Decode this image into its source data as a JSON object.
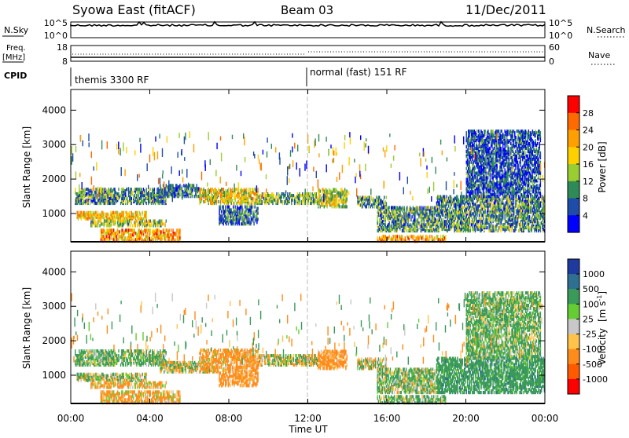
{
  "header": {
    "station": "Syowa East (fitACF)",
    "beam": "Beam 03",
    "date": "11/Dec/2011"
  },
  "panels": {
    "nsky_label": "N.Sky",
    "nsky_ticks": [
      "10^5",
      "10^0"
    ],
    "nsearch_label": "N.Search",
    "nsearch_ticks": [
      "10^5",
      "10^0"
    ],
    "freq_label_1": "Freq.",
    "freq_label_2": "[MHz]",
    "freq_ticks": [
      "18",
      "8"
    ],
    "nave_label": "Nave",
    "nave_ticks": [
      "60",
      "0"
    ],
    "cpid_label": "CPID",
    "cpid_segments": [
      "themis 3300 RF",
      "normal (fast) 151 RF"
    ]
  },
  "x_axis": {
    "label": "Time UT",
    "ticks": [
      "00:00",
      "04:00",
      "08:00",
      "12:00",
      "16:00",
      "20:00",
      "00:00"
    ]
  },
  "power_colorbar": {
    "label": "Power [dB]",
    "ticks": [
      "28",
      "24",
      "20",
      "16",
      "12",
      "8",
      "4"
    ],
    "colors": [
      "#ff0000",
      "#ff6a00",
      "#ff9f00",
      "#ffd000",
      "#9acd32",
      "#2e8b57",
      "#1e4ca8",
      "#0000ff"
    ]
  },
  "velocity_colorbar": {
    "label_main": "Velocity",
    "label_unit": "[m s",
    "label_sup": "-1",
    "label_close": "]",
    "ticks": [
      "1000",
      "500",
      "100",
      "25",
      "-25",
      "-100",
      "-500",
      "-1000"
    ],
    "colors": [
      "#1e3a9e",
      "#2f6f8f",
      "#3a9a5a",
      "#66cc33",
      "#c8c8c8",
      "#ffc24a",
      "#ff8c1a",
      "#ff5a00",
      "#ff0000"
    ]
  },
  "chart_data": [
    {
      "type": "heatmap",
      "title": "",
      "xlabel": "Time UT",
      "ylabel": "Slant Range [km]",
      "xlim": [
        "00:00",
        "24:00"
      ],
      "ylim": [
        180,
        4600
      ],
      "yticks": [
        1000,
        2000,
        3000,
        4000
      ],
      "colorbar": "Power [dB]",
      "clim": [
        0,
        30
      ],
      "regions": [
        {
          "t": [
            0.2,
            4.8
          ],
          "r": [
            1300,
            1750
          ],
          "v": 10
        },
        {
          "t": [
            0.3,
            3.8
          ],
          "r": [
            850,
            1050
          ],
          "v": 20
        },
        {
          "t": [
            1.0,
            4.8
          ],
          "r": [
            650,
            800
          ],
          "v": 14
        },
        {
          "t": [
            1.5,
            5.5
          ],
          "r": [
            200,
            550
          ],
          "v": 22
        },
        {
          "t": [
            4.5,
            6.5
          ],
          "r": [
            1500,
            1850
          ],
          "v": 8
        },
        {
          "t": [
            6.5,
            9.5
          ],
          "r": [
            1300,
            1750
          ],
          "v": 18
        },
        {
          "t": [
            7.5,
            9.5
          ],
          "r": [
            700,
            1200
          ],
          "v": 8
        },
        {
          "t": [
            9.5,
            12.5
          ],
          "r": [
            1300,
            1600
          ],
          "v": 12
        },
        {
          "t": [
            12.5,
            14.0
          ],
          "r": [
            1200,
            1700
          ],
          "v": 16
        },
        {
          "t": [
            14.5,
            16.0
          ],
          "r": [
            1200,
            1500
          ],
          "v": 10
        },
        {
          "t": [
            15.5,
            19.0
          ],
          "r": [
            200,
            350
          ],
          "v": 22
        },
        {
          "t": [
            15.5,
            18.5
          ],
          "r": [
            500,
            1200
          ],
          "v": 10
        },
        {
          "t": [
            18.5,
            24.0
          ],
          "r": [
            500,
            1500
          ],
          "v": 10
        },
        {
          "t": [
            20.0,
            23.8
          ],
          "r": [
            1500,
            3400
          ],
          "v": 6
        }
      ]
    },
    {
      "type": "heatmap",
      "title": "",
      "xlabel": "Time UT",
      "ylabel": "Slant Range [km]",
      "xlim": [
        "00:00",
        "24:00"
      ],
      "ylim": [
        180,
        4600
      ],
      "yticks": [
        1000,
        2000,
        3000,
        4000
      ],
      "colorbar": "Velocity [m s^-1]",
      "clim": [
        -1000,
        1000
      ],
      "regions": [
        {
          "t": [
            0.2,
            4.8
          ],
          "r": [
            1300,
            1750
          ],
          "v": 150
        },
        {
          "t": [
            0.3,
            3.8
          ],
          "r": [
            850,
            1050
          ],
          "v": 50
        },
        {
          "t": [
            1.0,
            4.8
          ],
          "r": [
            650,
            800
          ],
          "v": -150
        },
        {
          "t": [
            1.5,
            5.5
          ],
          "r": [
            200,
            550
          ],
          "v": -150
        },
        {
          "t": [
            4.5,
            7.0
          ],
          "r": [
            1100,
            1400
          ],
          "v": 0
        },
        {
          "t": [
            6.5,
            9.5
          ],
          "r": [
            1100,
            1750
          ],
          "v": -200
        },
        {
          "t": [
            7.5,
            9.5
          ],
          "r": [
            700,
            1100
          ],
          "v": -250
        },
        {
          "t": [
            9.5,
            12.5
          ],
          "r": [
            1300,
            1600
          ],
          "v": 0
        },
        {
          "t": [
            12.5,
            14.0
          ],
          "r": [
            1200,
            1700
          ],
          "v": -250
        },
        {
          "t": [
            14.5,
            16.0
          ],
          "r": [
            1200,
            1500
          ],
          "v": 0
        },
        {
          "t": [
            15.5,
            19.0
          ],
          "r": [
            200,
            400
          ],
          "v": 150
        },
        {
          "t": [
            15.5,
            18.5
          ],
          "r": [
            500,
            1200
          ],
          "v": 100
        },
        {
          "t": [
            18.5,
            24.0
          ],
          "r": [
            500,
            1500
          ],
          "v": 300
        },
        {
          "t": [
            20.0,
            23.8
          ],
          "r": [
            1500,
            3400
          ],
          "v": 150
        }
      ]
    }
  ]
}
